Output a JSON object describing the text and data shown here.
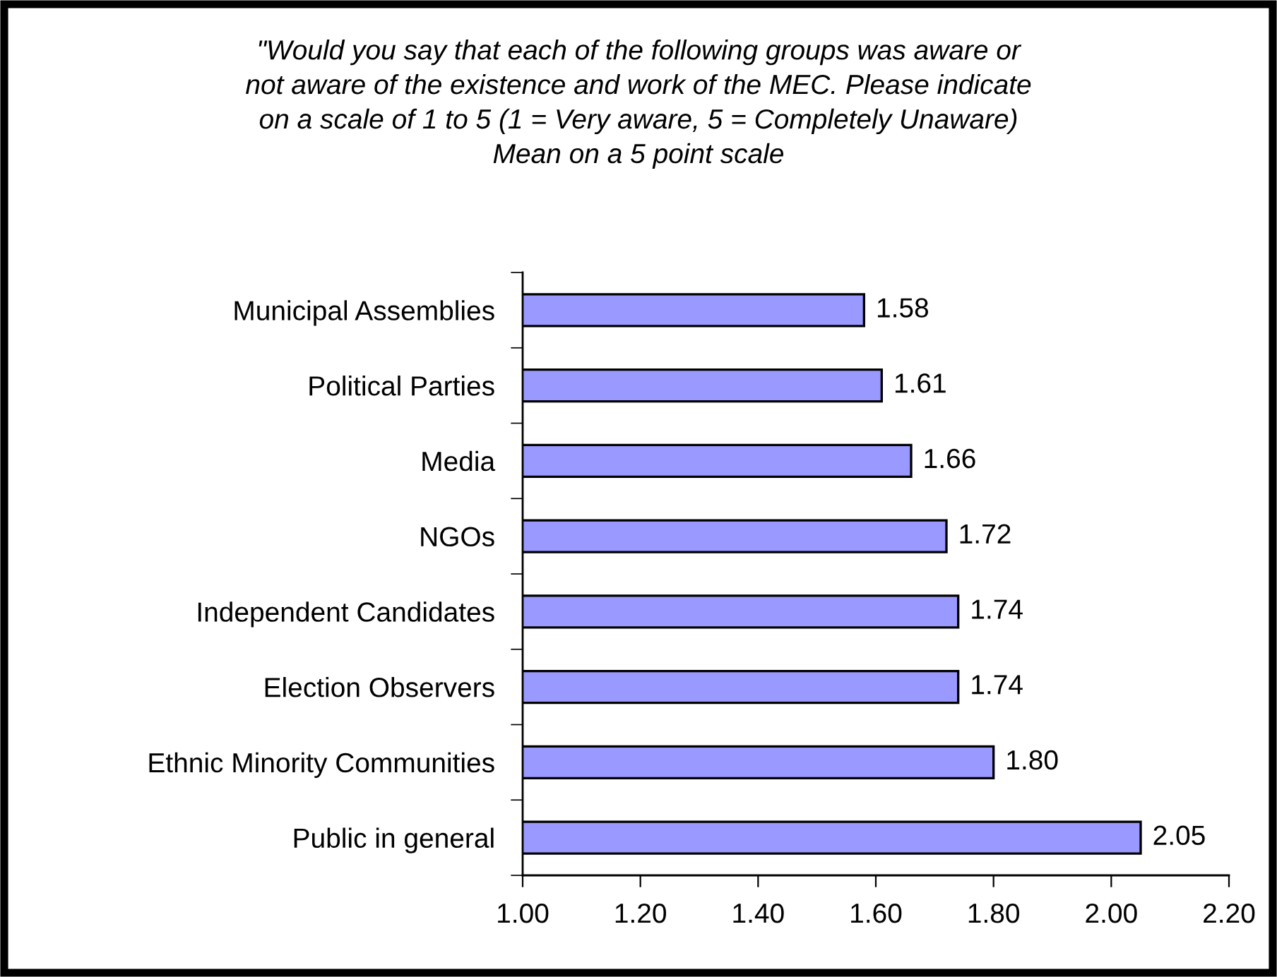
{
  "chart_data": {
    "type": "bar",
    "orientation": "horizontal",
    "title": "\"Would you say that each of the following groups was aware or\nnot aware of the existence and work of the MEC. Please indicate\non a scale of 1 to 5 (1 = Very aware, 5 = Completely Unaware)\nMean on a 5 point scale",
    "categories": [
      "Municipal Assemblies",
      "Political Parties",
      "Media",
      "NGOs",
      "Independent Candidates",
      "Election Observers",
      "Ethnic Minority Communities",
      "Public in general"
    ],
    "values": [
      1.58,
      1.61,
      1.66,
      1.72,
      1.74,
      1.74,
      1.8,
      2.05
    ],
    "color": "#9999ff",
    "xlim": [
      1.0,
      2.2
    ],
    "xticks": [
      {
        "value": 1.0,
        "label": "1.00"
      },
      {
        "value": 1.2,
        "label": "1.20"
      },
      {
        "value": 1.4,
        "label": "1.40"
      },
      {
        "value": 1.6,
        "label": "1.60"
      },
      {
        "value": 1.8,
        "label": "1.80"
      },
      {
        "value": 2.0,
        "label": "2.00"
      },
      {
        "value": 2.2,
        "label": "2.20"
      }
    ],
    "value_labels": [
      "1.58",
      "1.61",
      "1.66",
      "1.72",
      "1.74",
      "1.74",
      "1.80",
      "2.05"
    ],
    "grid": false
  }
}
